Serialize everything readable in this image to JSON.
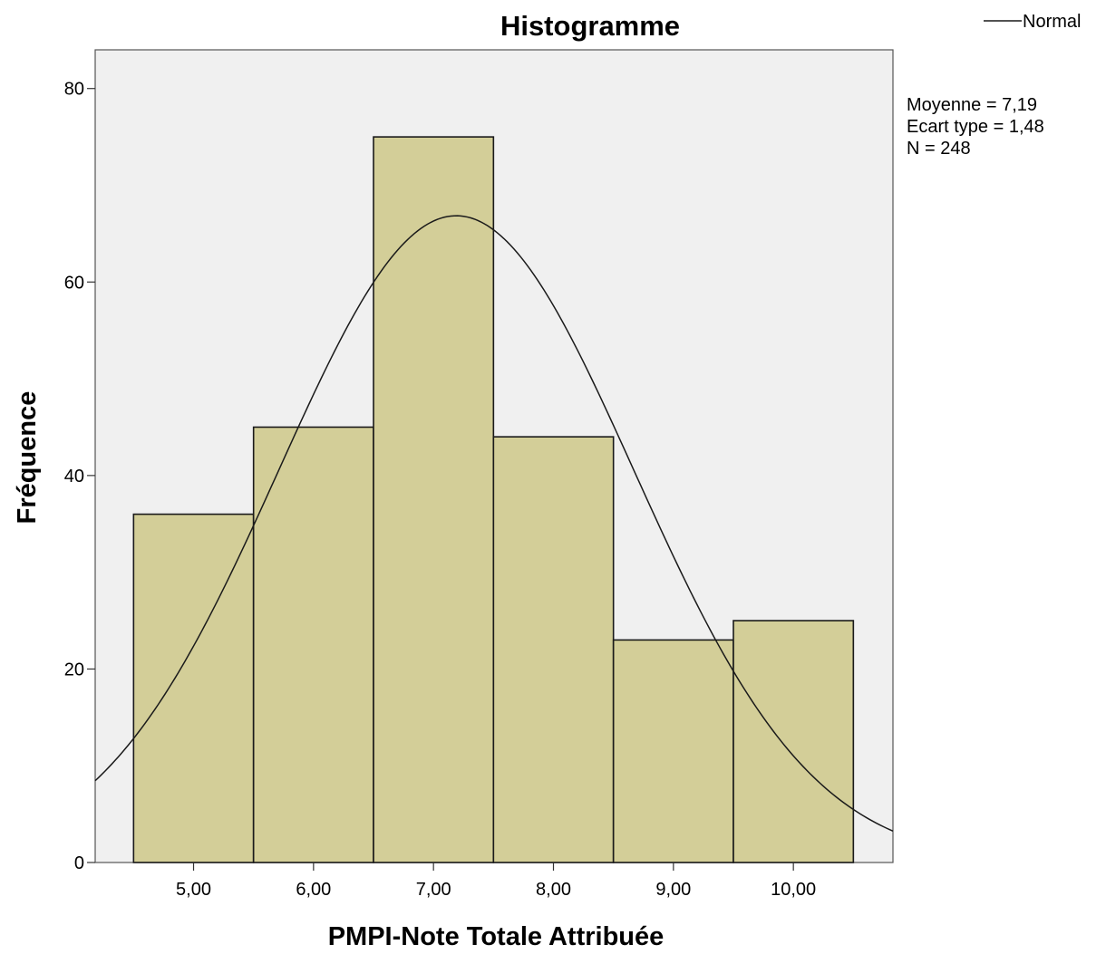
{
  "chart_data": {
    "type": "bar",
    "subtype": "histogram",
    "title": "Histogramme",
    "xlabel": "PMPI-Note Totale Attribuée",
    "ylabel": "Fréquence",
    "bins": [
      {
        "x0": 4.5,
        "x1": 5.5,
        "count": 36
      },
      {
        "x0": 5.5,
        "x1": 6.5,
        "count": 45
      },
      {
        "x0": 6.5,
        "x1": 7.5,
        "count": 75
      },
      {
        "x0": 7.5,
        "x1": 8.5,
        "count": 44
      },
      {
        "x0": 8.5,
        "x1": 9.5,
        "count": 23
      },
      {
        "x0": 9.5,
        "x1": 10.5,
        "count": 25
      }
    ],
    "xlim": [
      4.18,
      10.83
    ],
    "ylim": [
      0,
      84
    ],
    "xticks": [
      5,
      6,
      7,
      8,
      9,
      10
    ],
    "xtick_labels": [
      "5,00",
      "6,00",
      "7,00",
      "8,00",
      "9,00",
      "10,00"
    ],
    "yticks": [
      0,
      20,
      40,
      60,
      80
    ],
    "ytick_labels": [
      "0",
      "20",
      "40",
      "60",
      "80"
    ],
    "normal_curve": {
      "mean": 7.19,
      "sd": 1.48,
      "n": 248,
      "bin_width": 1
    },
    "stats_lines": [
      "Moyenne = 7,19",
      "Ecart type = 1,48",
      "N = 248"
    ],
    "legend": {
      "label": "Normal",
      "position": "top-right"
    },
    "colors": {
      "bar_fill": "#d3ce98",
      "bar_stroke": "#1a1a1a",
      "plot_bg": "#f0f0f0",
      "curve": "#1a1a1a"
    },
    "grid": false
  }
}
